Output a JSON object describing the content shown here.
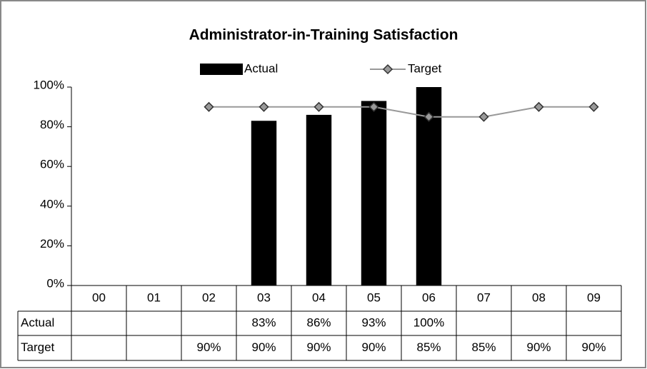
{
  "chart_data": {
    "type": "bar",
    "title": "Administrator-in-Training Satisfaction",
    "categories": [
      "00",
      "01",
      "02",
      "03",
      "04",
      "05",
      "06",
      "07",
      "08",
      "09"
    ],
    "series": [
      {
        "name": "Actual",
        "type": "bar",
        "color": "#000000",
        "values": [
          null,
          null,
          null,
          83,
          86,
          93,
          100,
          null,
          null,
          null
        ],
        "value_labels": [
          null,
          null,
          null,
          "83%",
          "86%",
          "93%",
          "100%",
          null,
          null,
          null
        ]
      },
      {
        "name": "Target",
        "type": "line",
        "color": "#999999",
        "marker_color": "#999999",
        "values": [
          null,
          null,
          90,
          90,
          90,
          90,
          85,
          85,
          90,
          90
        ],
        "value_labels": [
          null,
          null,
          "90%",
          "90%",
          "90%",
          "90%",
          "85%",
          "85%",
          "90%",
          "90%"
        ]
      }
    ],
    "ylim": [
      0,
      100
    ],
    "yticks": [
      {
        "value": 0,
        "label": "0%"
      },
      {
        "value": 20,
        "label": "20%"
      },
      {
        "value": 40,
        "label": "40%"
      },
      {
        "value": 60,
        "label": "60%"
      },
      {
        "value": 80,
        "label": "80%"
      },
      {
        "value": 100,
        "label": "100%"
      }
    ],
    "legend": "top",
    "data_table": true
  }
}
